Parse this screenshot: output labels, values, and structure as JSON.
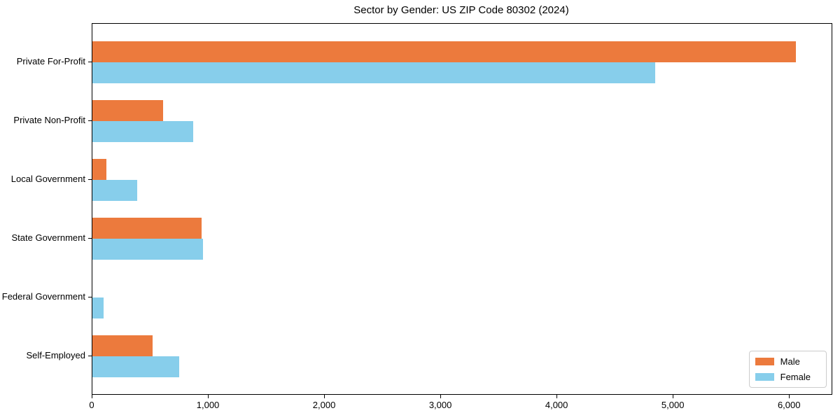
{
  "chart_data": {
    "type": "bar",
    "orientation": "horizontal",
    "title": "Sector by Gender: US ZIP Code 80302 (2024)",
    "xlabel": "",
    "ylabel": "",
    "categories": [
      "Private For-Profit",
      "Private Non-Profit",
      "Local Government",
      "State Government",
      "Federal Government",
      "Self-Employed"
    ],
    "series": [
      {
        "name": "Male",
        "color": "#ec7a3d",
        "values": [
          6050,
          610,
          120,
          940,
          0,
          520
        ]
      },
      {
        "name": "Female",
        "color": "#87ceeb",
        "values": [
          4845,
          870,
          385,
          950,
          95,
          745
        ]
      }
    ],
    "xlim": [
      0,
      6360
    ],
    "xticks": [
      0,
      1000,
      2000,
      3000,
      4000,
      5000,
      6000
    ],
    "xtick_labels": [
      "0",
      "1,000",
      "2,000",
      "3,000",
      "4,000",
      "5,000",
      "6,000"
    ],
    "grid": false,
    "legend_position": "lower right"
  }
}
